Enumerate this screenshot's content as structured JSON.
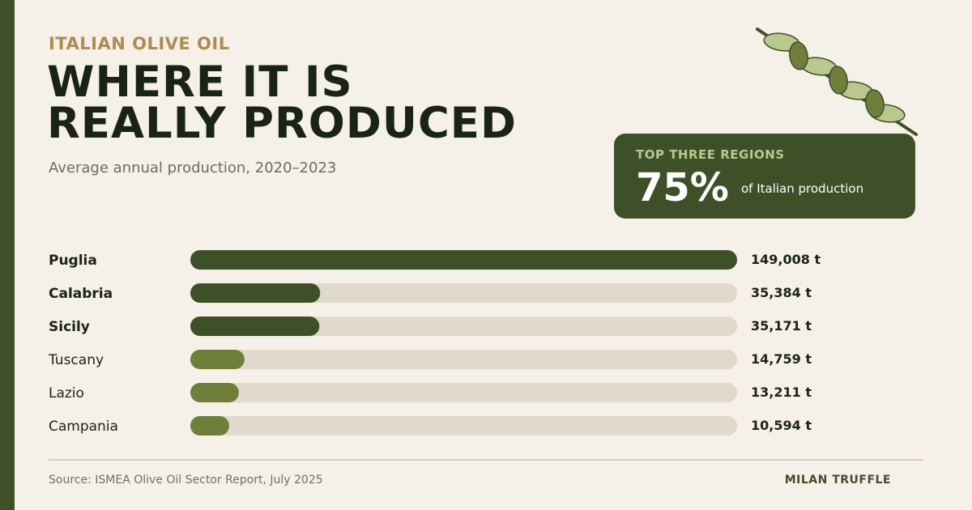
{
  "header": {
    "kicker": "ITALIAN OLIVE OIL",
    "title_line1": "WHERE IT IS",
    "title_line2": "REALLY PRODUCED",
    "subtitle": "Average annual production, 2020–2023"
  },
  "stat_card": {
    "label": "TOP THREE REGIONS",
    "value": "75%",
    "description": "of Italian production"
  },
  "colors": {
    "background": "#f5f0e8",
    "dark_green": "#3e5027",
    "olive_green": "#6f7f3a",
    "track": "#e0d9cc",
    "gold": "#b08b4f"
  },
  "chart_data": {
    "type": "bar",
    "orientation": "horizontal",
    "categories": [
      "Puglia",
      "Calabria",
      "Sicily",
      "Tuscany",
      "Lazio",
      "Campania"
    ],
    "values": [
      149008,
      35384,
      35171,
      14759,
      13211,
      10594
    ],
    "value_labels": [
      "149,008 t",
      "35,384 t",
      "35,171 t",
      "14,759 t",
      "13,211 t",
      "10,594 t"
    ],
    "highlight": [
      true,
      true,
      true,
      false,
      false,
      false
    ],
    "unit": "t",
    "xlim": [
      0,
      149008
    ],
    "grid": false,
    "legend": "none"
  },
  "footer": {
    "source": "Source: ISMEA Olive Oil Sector Report, July 2025",
    "brand": "MILAN TRUFFLE"
  }
}
